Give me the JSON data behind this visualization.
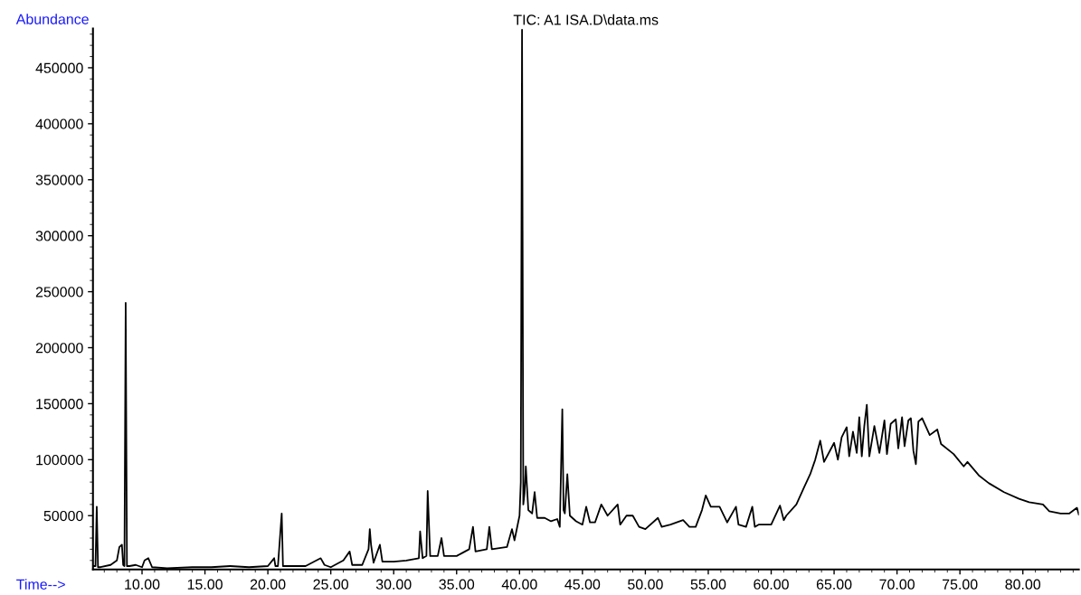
{
  "chart_data": {
    "type": "line",
    "title": "TIC: A1 ISA.D\\data.ms",
    "xlabel": "Time-->",
    "ylabel": "Abundance",
    "x": [
      6.1,
      6.3,
      6.4,
      6.5,
      6.7,
      7.5,
      8.0,
      8.2,
      8.4,
      8.5,
      8.6,
      8.7,
      8.8,
      9.0,
      9.5,
      10.0,
      10.2,
      10.5,
      10.8,
      12.0,
      14.0,
      15.5,
      17.0,
      18.5,
      20.0,
      20.5,
      20.6,
      20.8,
      21.1,
      21.2,
      21.3,
      22.0,
      23.0,
      24.2,
      24.5,
      25.0,
      26.0,
      26.5,
      26.7,
      27.5,
      28.0,
      28.1,
      28.2,
      28.4,
      28.9,
      29.1,
      30.0,
      31.0,
      32.0,
      32.1,
      32.3,
      32.6,
      32.7,
      32.9,
      33.5,
      33.8,
      34.0,
      35.0,
      36.0,
      36.3,
      36.5,
      37.4,
      37.6,
      37.8,
      39.0,
      39.4,
      39.6,
      40.0,
      40.1,
      40.2,
      40.3,
      40.4,
      40.5,
      40.7,
      41.0,
      41.2,
      41.4,
      42.0,
      42.5,
      43.0,
      43.2,
      43.4,
      43.5,
      43.6,
      43.8,
      44.0,
      44.5,
      45.0,
      45.3,
      45.6,
      46.0,
      46.5,
      47.0,
      47.8,
      48.0,
      48.5,
      49.0,
      49.5,
      50.0,
      51.0,
      51.3,
      52.0,
      53.0,
      53.5,
      54.0,
      54.5,
      54.8,
      55.2,
      55.9,
      56.5,
      57.2,
      57.4,
      58.0,
      58.5,
      58.7,
      59.0,
      60.0,
      60.7,
      61.0,
      61.2,
      62.0,
      62.6,
      63.1,
      63.5,
      63.9,
      64.2,
      65.0,
      65.3,
      65.6,
      66.0,
      66.2,
      66.5,
      66.8,
      67.0,
      67.2,
      67.4,
      67.6,
      67.8,
      68.2,
      68.6,
      69.0,
      69.2,
      69.5,
      69.9,
      70.1,
      70.4,
      70.6,
      70.9,
      71.1,
      71.3,
      71.5,
      71.7,
      72.0,
      72.6,
      73.2,
      73.5,
      74.5,
      75.3,
      75.6,
      76.5,
      77.3,
      78.5,
      79.7,
      80.5,
      81.6,
      82.1,
      83.0,
      83.7,
      84.3,
      84.45
    ],
    "series": [
      {
        "color": "#000000",
        "values": [
          5000,
          5000,
          58000,
          4000,
          4000,
          6000,
          10000,
          22000,
          24000,
          6000,
          5000,
          240000,
          5000,
          5000,
          6000,
          4000,
          10000,
          12000,
          4000,
          3000,
          4000,
          4000,
          5000,
          4000,
          5000,
          12000,
          5000,
          5000,
          52000,
          5000,
          5000,
          5000,
          5000,
          12000,
          6000,
          4000,
          10000,
          18000,
          6000,
          6000,
          20000,
          38000,
          24000,
          8000,
          24000,
          9000,
          9000,
          10000,
          12000,
          36000,
          12000,
          14000,
          72000,
          14000,
          14000,
          30000,
          14000,
          14000,
          20000,
          40000,
          18000,
          20000,
          40000,
          20000,
          22000,
          38000,
          28000,
          50000,
          80000,
          484000,
          60000,
          70000,
          94000,
          55000,
          52000,
          71000,
          48000,
          48000,
          45000,
          47000,
          40000,
          145000,
          55000,
          52000,
          87000,
          50000,
          45000,
          42000,
          58000,
          44000,
          44000,
          60000,
          50000,
          60000,
          42000,
          50000,
          50000,
          40000,
          38000,
          48000,
          40000,
          42000,
          46000,
          40000,
          40000,
          55000,
          68000,
          58000,
          58000,
          44000,
          58000,
          42000,
          40000,
          58000,
          40000,
          42000,
          42000,
          59000,
          46000,
          50000,
          60000,
          75000,
          87000,
          100000,
          117000,
          98000,
          115000,
          100000,
          120000,
          129000,
          103000,
          125000,
          106000,
          138000,
          103000,
          130000,
          149000,
          103000,
          130000,
          106000,
          135000,
          105000,
          132000,
          136000,
          110000,
          138000,
          112000,
          135000,
          137000,
          108000,
          96000,
          134000,
          137000,
          122000,
          127000,
          114000,
          105000,
          94000,
          98000,
          86000,
          79000,
          71000,
          65000,
          62000,
          60000,
          54000,
          52000,
          52000,
          57000,
          51000
        ]
      }
    ],
    "xlim": [
      6.1,
      84.45
    ],
    "ylim": [
      2000,
      485000
    ],
    "xticks": [
      {
        "value": 10,
        "label": "10.00"
      },
      {
        "value": 15,
        "label": "15.00"
      },
      {
        "value": 20,
        "label": "20.00"
      },
      {
        "value": 25,
        "label": "25.00"
      },
      {
        "value": 30,
        "label": "30.00"
      },
      {
        "value": 35,
        "label": "35.00"
      },
      {
        "value": 40,
        "label": "40.00"
      },
      {
        "value": 45,
        "label": "45.00"
      },
      {
        "value": 50,
        "label": "50.00"
      },
      {
        "value": 55,
        "label": "55.00"
      },
      {
        "value": 60,
        "label": "60.00"
      },
      {
        "value": 65,
        "label": "65.00"
      },
      {
        "value": 70,
        "label": "70.00"
      },
      {
        "value": 75,
        "label": "75.00"
      },
      {
        "value": 80,
        "label": "80.00"
      }
    ],
    "yticks": [
      50000,
      100000,
      150000,
      200000,
      250000,
      300000,
      350000,
      400000,
      450000
    ],
    "marker": "none",
    "line_style": "solid"
  }
}
